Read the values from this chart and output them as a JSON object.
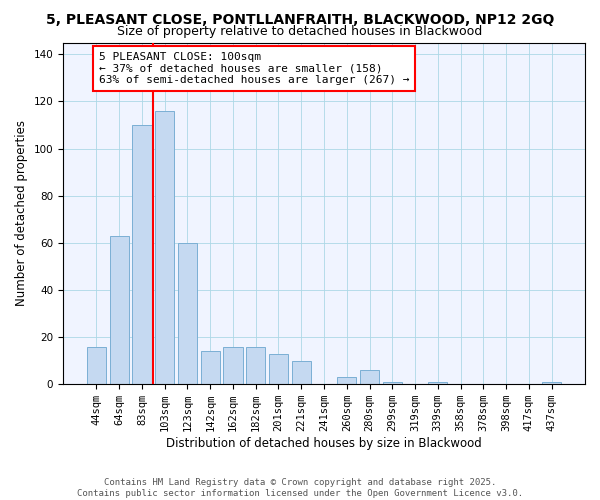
{
  "title": "5, PLEASANT CLOSE, PONTLLANFRAITH, BLACKWOOD, NP12 2GQ",
  "subtitle": "Size of property relative to detached houses in Blackwood",
  "xlabel": "Distribution of detached houses by size in Blackwood",
  "ylabel": "Number of detached properties",
  "bar_labels": [
    "44sqm",
    "64sqm",
    "83sqm",
    "103sqm",
    "123sqm",
    "142sqm",
    "162sqm",
    "182sqm",
    "201sqm",
    "221sqm",
    "241sqm",
    "260sqm",
    "280sqm",
    "299sqm",
    "319sqm",
    "339sqm",
    "358sqm",
    "378sqm",
    "398sqm",
    "417sqm",
    "437sqm"
  ],
  "bar_values": [
    16,
    63,
    110,
    116,
    60,
    14,
    16,
    16,
    13,
    10,
    0,
    3,
    6,
    1,
    0,
    1,
    0,
    0,
    0,
    0,
    1
  ],
  "bar_color": "#c5d9f1",
  "bar_edge_color": "#7bafd4",
  "vline_x_index": 3,
  "vline_color": "red",
  "ylim": [
    0,
    145
  ],
  "yticks": [
    0,
    20,
    40,
    60,
    80,
    100,
    120,
    140
  ],
  "annotation_lines": [
    "5 PLEASANT CLOSE: 100sqm",
    "← 37% of detached houses are smaller (158)",
    "63% of semi-detached houses are larger (267) →"
  ],
  "footer_line1": "Contains HM Land Registry data © Crown copyright and database right 2025.",
  "footer_line2": "Contains public sector information licensed under the Open Government Licence v3.0.",
  "title_fontsize": 10,
  "subtitle_fontsize": 9,
  "axis_label_fontsize": 8.5,
  "tick_fontsize": 7.5,
  "annotation_fontsize": 8,
  "footer_fontsize": 6.5
}
